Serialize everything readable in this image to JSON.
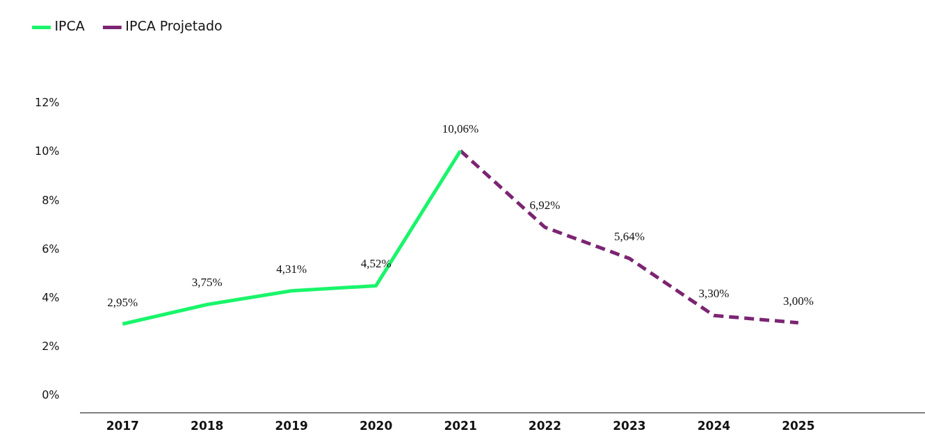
{
  "chart_data": {
    "type": "line",
    "categories": [
      "2017",
      "2018",
      "2019",
      "2020",
      "2021",
      "2022",
      "2023",
      "2024",
      "2025",
      null
    ],
    "series": [
      {
        "name": "IPCA",
        "color": "#19f56a",
        "line_style": "solid",
        "values": [
          2.95,
          3.75,
          4.31,
          4.52,
          10.06,
          null,
          null,
          null,
          null,
          null
        ],
        "value_labels": [
          "2,95%",
          "3,75%",
          "4,31%",
          "4,52%",
          "10,06%",
          null,
          null,
          null,
          null,
          null
        ]
      },
      {
        "name": "IPCA Projetado",
        "color": "#7b2572",
        "line_style": "dashed",
        "values": [
          null,
          null,
          null,
          null,
          10.06,
          6.92,
          5.64,
          3.3,
          3.0,
          null
        ],
        "value_labels": [
          null,
          null,
          null,
          null,
          null,
          "6,92%",
          "5,64%",
          "3,30%",
          "3,00%",
          null
        ]
      }
    ],
    "ylim": [
      -0.7,
      12
    ],
    "yticks": [
      {
        "value": 0,
        "label": "0%"
      },
      {
        "value": 2,
        "label": "2%"
      },
      {
        "value": 4,
        "label": "4%"
      },
      {
        "value": 6,
        "label": "6%"
      },
      {
        "value": 8,
        "label": "8%"
      },
      {
        "value": 10,
        "label": "10%"
      },
      {
        "value": 12,
        "label": "12%"
      }
    ],
    "grid": false,
    "legend": "top left",
    "marker": "none"
  }
}
